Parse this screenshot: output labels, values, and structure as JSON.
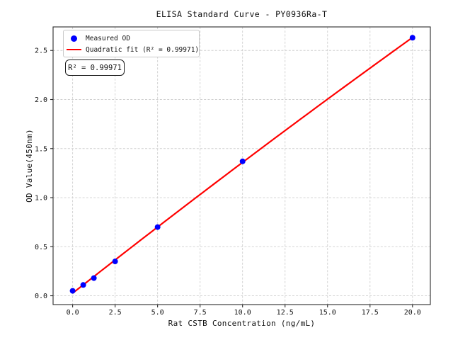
{
  "chart_data": {
    "type": "scatter",
    "title": "ELISA Standard Curve - PY0936Ra-T",
    "xlabel": "Rat CSTB Concentration (ng/mL)",
    "ylabel": "OD Value(450nm)",
    "series": [
      {
        "name": "Measured OD",
        "kind": "scatter",
        "color": "#0000ff",
        "x": [
          0,
          0.625,
          1.25,
          2.5,
          5,
          10,
          20
        ],
        "y": [
          0.05,
          0.11,
          0.18,
          0.35,
          0.7,
          1.37,
          2.63
        ]
      },
      {
        "name": "Quadratic fit (R² = 0.99971)",
        "kind": "quadratic-fit",
        "color": "#ff0000",
        "fit_of_series": 0,
        "r_squared": 0.99971
      }
    ],
    "xlim": [
      -1.15,
      21.05
    ],
    "ylim": [
      -0.09,
      2.74
    ],
    "xticks": [
      0,
      2.5,
      5,
      7.5,
      10,
      12.5,
      15,
      17.5,
      20
    ],
    "xtick_labels": [
      "0.0",
      "2.5",
      "5.0",
      "7.5",
      "10.0",
      "12.5",
      "15.0",
      "17.5",
      "20.0"
    ],
    "yticks": [
      0,
      0.5,
      1,
      1.5,
      2,
      2.5
    ],
    "ytick_labels": [
      "0.0",
      "0.5",
      "1.0",
      "1.5",
      "2.0",
      "2.5"
    ],
    "grid": true,
    "legend_position": "upper left",
    "annotation": "R² = 0.99971",
    "colors": {
      "grid": "#cfcfcf",
      "frame": "#2a2a2a",
      "text": "#111111",
      "background": "#ffffff"
    }
  }
}
